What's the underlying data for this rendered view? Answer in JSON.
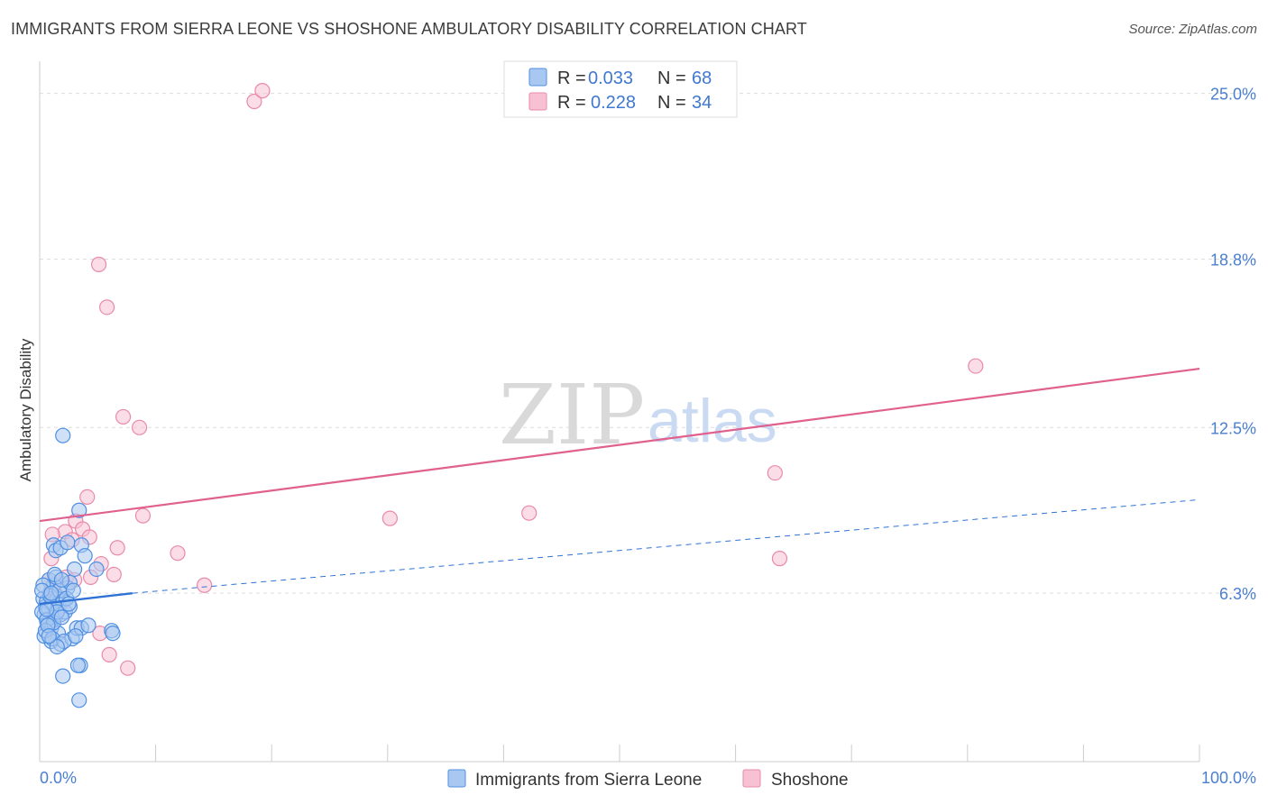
{
  "header": {
    "title": "IMMIGRANTS FROM SIERRA LEONE VS SHOSHONE AMBULATORY DISABILITY CORRELATION CHART",
    "source": "Source: ZipAtlas.com"
  },
  "watermark": {
    "zip": "ZIP",
    "atlas": "atlas"
  },
  "colors": {
    "blue_fill": "#a9c8f1",
    "blue_stroke": "#4f8fe2",
    "blue_line": "#2f72d6",
    "pink_fill": "#f7c1d3",
    "pink_stroke": "#e98aa9",
    "pink_line": "#e0608e",
    "grid": "#dddddd",
    "axis_text": "#4a7fd0"
  },
  "legend": {
    "rows": [
      {
        "r_label": "R =",
        "r_value": "0.033",
        "n_label": "N =",
        "n_value": "68"
      },
      {
        "r_label": "R =",
        "r_value": "0.228",
        "n_label": "N =",
        "n_value": "34"
      }
    ]
  },
  "chart_data": {
    "type": "scatter",
    "title": "IMMIGRANTS FROM SIERRA LEONE VS SHOSHONE AMBULATORY DISABILITY CORRELATION CHART",
    "xlabel": "",
    "ylabel": "Ambulatory Disability",
    "xlim": [
      0,
      100
    ],
    "ylim": [
      0,
      26.2
    ],
    "x_tick_labels": [
      "0.0%",
      "100.0%"
    ],
    "y_ticks": [
      6.3,
      12.5,
      18.8,
      25.0
    ],
    "y_tick_labels": [
      "6.3%",
      "12.5%",
      "18.8%",
      "25.0%"
    ],
    "grid": true,
    "legend_position": "top-center",
    "series": [
      {
        "name": "Immigrants from Sierra Leone",
        "color": "#a9c8f1",
        "r": 0.033,
        "n": 68,
        "trend": {
          "x0": 0,
          "y0": 5.9,
          "x1": 8,
          "y1": 6.3,
          "dashed_to_x": 100,
          "dashed_to_y": 9.8
        },
        "points": [
          [
            0.3,
            6.1
          ],
          [
            0.5,
            5.8
          ],
          [
            0.4,
            5.5
          ],
          [
            0.6,
            6.0
          ],
          [
            0.7,
            5.2
          ],
          [
            0.8,
            5.7
          ],
          [
            0.9,
            6.3
          ],
          [
            1.0,
            5.0
          ],
          [
            1.1,
            5.9
          ],
          [
            1.2,
            6.6
          ],
          [
            1.3,
            5.4
          ],
          [
            1.5,
            6.1
          ],
          [
            1.6,
            4.8
          ],
          [
            1.8,
            5.5
          ],
          [
            2.0,
            6.0
          ],
          [
            0.2,
            5.6
          ],
          [
            0.4,
            4.7
          ],
          [
            0.6,
            5.3
          ],
          [
            0.8,
            6.8
          ],
          [
            1.0,
            4.5
          ],
          [
            1.2,
            5.2
          ],
          [
            1.4,
            6.9
          ],
          [
            1.6,
            5.9
          ],
          [
            1.8,
            4.4
          ],
          [
            2.2,
            5.6
          ],
          [
            2.4,
            6.5
          ],
          [
            2.6,
            5.8
          ],
          [
            2.8,
            4.6
          ],
          [
            3.0,
            7.2
          ],
          [
            3.2,
            5.0
          ],
          [
            0.3,
            6.6
          ],
          [
            0.5,
            4.9
          ],
          [
            0.7,
            5.1
          ],
          [
            0.9,
            6.2
          ],
          [
            1.1,
            4.6
          ],
          [
            1.3,
            7.0
          ],
          [
            1.5,
            5.6
          ],
          [
            1.7,
            6.4
          ],
          [
            1.9,
            5.4
          ],
          [
            2.1,
            4.5
          ],
          [
            2.3,
            6.1
          ],
          [
            1.2,
            8.1
          ],
          [
            1.4,
            7.9
          ],
          [
            1.8,
            8.0
          ],
          [
            2.4,
            8.2
          ],
          [
            2.6,
            6.7
          ],
          [
            3.6,
            8.1
          ],
          [
            3.9,
            7.7
          ],
          [
            3.4,
            9.4
          ],
          [
            2.0,
            12.2
          ],
          [
            3.6,
            5.0
          ],
          [
            3.1,
            4.7
          ],
          [
            6.2,
            4.9
          ],
          [
            6.3,
            4.8
          ],
          [
            3.5,
            3.6
          ],
          [
            2.0,
            3.2
          ],
          [
            3.3,
            3.6
          ],
          [
            3.4,
            2.3
          ],
          [
            4.9,
            7.2
          ],
          [
            0.2,
            6.4
          ],
          [
            0.6,
            5.7
          ],
          [
            1.0,
            6.3
          ],
          [
            2.9,
            6.4
          ],
          [
            4.2,
            5.1
          ],
          [
            2.5,
            5.9
          ],
          [
            1.5,
            4.3
          ],
          [
            0.8,
            4.7
          ],
          [
            1.9,
            6.8
          ]
        ]
      },
      {
        "name": "Shoshone",
        "color": "#f7c1d3",
        "r": 0.228,
        "n": 34,
        "trend": {
          "x0": 0,
          "y0": 9.0,
          "x1": 100,
          "y1": 14.7
        },
        "points": [
          [
            18.5,
            24.7
          ],
          [
            19.2,
            25.1
          ],
          [
            5.1,
            18.6
          ],
          [
            5.8,
            17.0
          ],
          [
            7.2,
            12.9
          ],
          [
            8.6,
            12.5
          ],
          [
            4.1,
            9.9
          ],
          [
            8.9,
            9.2
          ],
          [
            2.2,
            8.6
          ],
          [
            3.1,
            9.0
          ],
          [
            3.7,
            8.7
          ],
          [
            4.3,
            8.4
          ],
          [
            1.1,
            8.5
          ],
          [
            6.7,
            8.0
          ],
          [
            11.9,
            7.8
          ],
          [
            1.0,
            7.6
          ],
          [
            5.3,
            7.4
          ],
          [
            6.4,
            7.0
          ],
          [
            4.4,
            6.9
          ],
          [
            2.3,
            6.9
          ],
          [
            3.0,
            6.8
          ],
          [
            14.2,
            6.6
          ],
          [
            1.0,
            6.5
          ],
          [
            30.2,
            9.1
          ],
          [
            42.2,
            9.3
          ],
          [
            63.4,
            10.8
          ],
          [
            80.7,
            14.8
          ],
          [
            63.8,
            7.6
          ],
          [
            5.2,
            4.8
          ],
          [
            6.0,
            4.0
          ],
          [
            7.6,
            3.5
          ],
          [
            1.5,
            6.2
          ],
          [
            0.8,
            6.8
          ],
          [
            2.8,
            8.3
          ]
        ]
      }
    ]
  }
}
